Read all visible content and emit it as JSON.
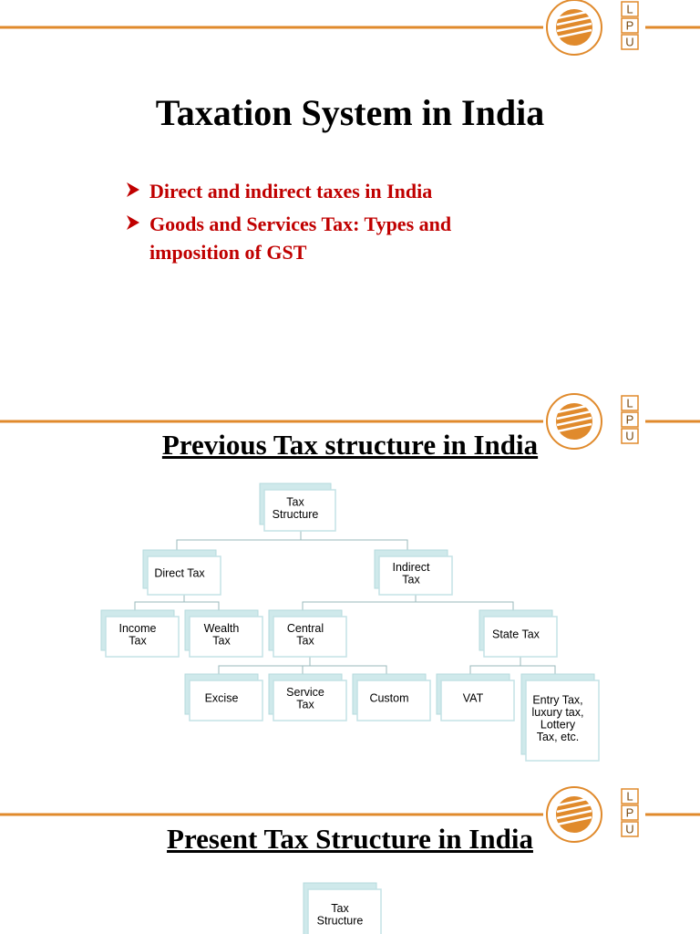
{
  "slides": [
    {
      "logo": [
        "L",
        "P",
        "U"
      ],
      "title": "Taxation System in India",
      "bullets": [
        "Direct and indirect taxes in India",
        "Goods and Services Tax: Types and imposition of GST"
      ]
    },
    {
      "logo": [
        "L",
        "P",
        "U"
      ],
      "title": "Previous Tax structure in India",
      "nodes": [
        {
          "label": [
            "Tax",
            "Structure"
          ]
        },
        {
          "label": [
            "Direct Tax"
          ]
        },
        {
          "label": [
            "Indirect",
            "Tax"
          ]
        },
        {
          "label": [
            "Income",
            "Tax"
          ]
        },
        {
          "label": [
            "Wealth",
            "Tax"
          ]
        },
        {
          "label": [
            "Central",
            "Tax"
          ]
        },
        {
          "label": [
            "State Tax"
          ]
        },
        {
          "label": [
            "Excise"
          ]
        },
        {
          "label": [
            "Service",
            "Tax"
          ]
        },
        {
          "label": [
            "Custom"
          ]
        },
        {
          "label": [
            "VAT"
          ]
        },
        {
          "label": [
            "Entry Tax,",
            "luxury tax,",
            "Lottery",
            "Tax, etc."
          ]
        }
      ]
    },
    {
      "logo": [
        "L",
        "P",
        "U"
      ],
      "title": "Present Tax Structure in India",
      "nodes": [
        {
          "label": [
            "Tax",
            "Structure"
          ]
        }
      ]
    }
  ]
}
